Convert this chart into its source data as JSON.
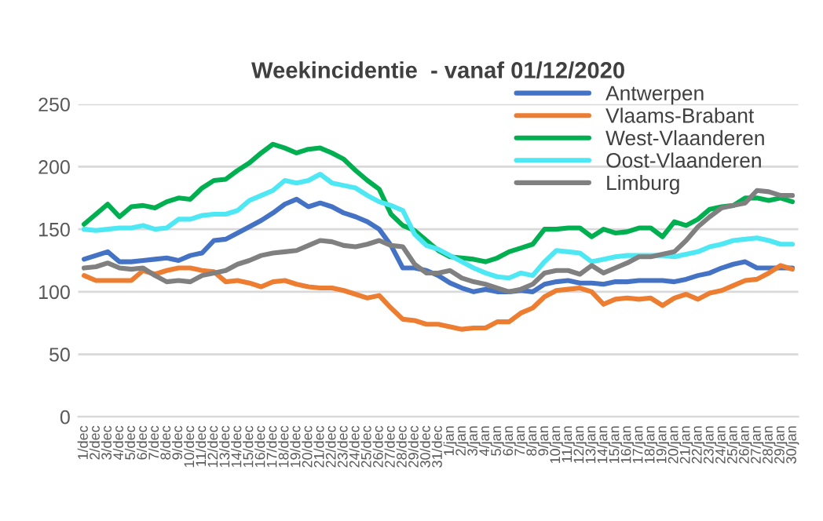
{
  "chart_data": {
    "type": "line",
    "title": "Weekincidentie  - vanaf 01/12/2020",
    "categories": [
      "1/dec",
      "2/dec",
      "3/dec",
      "4/dec",
      "5/dec",
      "6/dec",
      "7/dec",
      "8/dec",
      "9/dec",
      "10/dec",
      "11/dec",
      "12/dec",
      "13/dec",
      "14/dec",
      "15/dec",
      "16/dec",
      "17/dec",
      "18/dec",
      "19/dec",
      "20/dec",
      "21/dec",
      "22/dec",
      "23/dec",
      "24/dec",
      "25/dec",
      "26/dec",
      "27/dec",
      "28/dec",
      "29/dec",
      "30/dec",
      "31/dec",
      "1/jan",
      "2/jan",
      "3/jan",
      "4/jan",
      "5/jan",
      "6/jan",
      "7/jan",
      "8/jan",
      "9/jan",
      "10/jan",
      "11/jan",
      "12/jan",
      "13/jan",
      "14/jan",
      "15/jan",
      "16/jan",
      "17/jan",
      "18/jan",
      "19/jan",
      "20/jan",
      "21/jan",
      "22/jan",
      "23/jan",
      "24/jan",
      "25/jan",
      "26/jan",
      "27/jan",
      "28/jan",
      "29/jan",
      "30/jan"
    ],
    "series": [
      {
        "name": "Antwerpen",
        "color": "#4472c4",
        "values": [
          126,
          129,
          132,
          124,
          124,
          125,
          126,
          127,
          125,
          129,
          131,
          141,
          142,
          147,
          152,
          157,
          163,
          170,
          174,
          168,
          171,
          168,
          163,
          160,
          156,
          150,
          137,
          119,
          119,
          117,
          113,
          107,
          103,
          100,
          102,
          100,
          100,
          101,
          100,
          106,
          108,
          109,
          107,
          107,
          106,
          108,
          108,
          109,
          109,
          109,
          108,
          110,
          113,
          115,
          119,
          122,
          124,
          119,
          119,
          119,
          119
        ]
      },
      {
        "name": "Vlaams-Brabant",
        "color": "#ed7d31",
        "values": [
          113,
          109,
          109,
          109,
          109,
          117,
          114,
          117,
          119,
          119,
          117,
          116,
          108,
          109,
          107,
          104,
          108,
          109,
          106,
          104,
          103,
          103,
          101,
          98,
          95,
          97,
          87,
          78,
          77,
          74,
          74,
          72,
          70,
          71,
          71,
          76,
          76,
          83,
          87,
          96,
          101,
          102,
          103,
          100,
          90,
          94,
          95,
          94,
          95,
          89,
          95,
          98,
          94,
          99,
          101,
          105,
          109,
          110,
          115,
          121,
          118
        ]
      },
      {
        "name": "West-Vlaanderen",
        "color": "#00b050",
        "values": [
          154,
          162,
          170,
          160,
          168,
          169,
          167,
          172,
          175,
          174,
          183,
          189,
          190,
          197,
          203,
          211,
          218,
          215,
          211,
          214,
          215,
          211,
          206,
          197,
          189,
          182,
          162,
          153,
          149,
          141,
          133,
          128,
          127,
          126,
          124,
          127,
          132,
          135,
          138,
          150,
          150,
          151,
          151,
          144,
          150,
          147,
          148,
          151,
          151,
          144,
          156,
          153,
          158,
          166,
          168,
          169,
          175,
          175,
          173,
          175,
          172
        ]
      },
      {
        "name": "Oost-Vlaanderen",
        "color": "#4de8f4",
        "values": [
          150,
          149,
          150,
          151,
          151,
          153,
          150,
          151,
          158,
          158,
          161,
          162,
          162,
          165,
          173,
          177,
          181,
          189,
          187,
          189,
          194,
          187,
          185,
          183,
          177,
          172,
          169,
          165,
          146,
          137,
          134,
          129,
          124,
          119,
          115,
          112,
          111,
          115,
          113,
          124,
          133,
          132,
          131,
          124,
          126,
          128,
          129,
          129,
          129,
          129,
          128,
          130,
          132,
          136,
          138,
          141,
          142,
          143,
          141,
          138,
          138
        ]
      },
      {
        "name": "Limburg",
        "color": "#808080",
        "values": [
          119,
          120,
          123,
          119,
          118,
          119,
          113,
          108,
          109,
          108,
          113,
          115,
          117,
          122,
          125,
          129,
          131,
          132,
          133,
          137,
          141,
          140,
          137,
          136,
          138,
          141,
          137,
          136,
          122,
          115,
          115,
          117,
          111,
          108,
          106,
          103,
          100,
          102,
          106,
          115,
          117,
          117,
          114,
          121,
          115,
          119,
          123,
          128,
          128,
          130,
          132,
          141,
          152,
          160,
          167,
          169,
          171,
          181,
          180,
          177,
          177
        ]
      }
    ],
    "ylim": [
      0,
      250
    ],
    "yticks": [
      0,
      50,
      100,
      150,
      200,
      250
    ],
    "grid": "y",
    "legend": "top right",
    "line_style": "solid",
    "marker": "none"
  }
}
